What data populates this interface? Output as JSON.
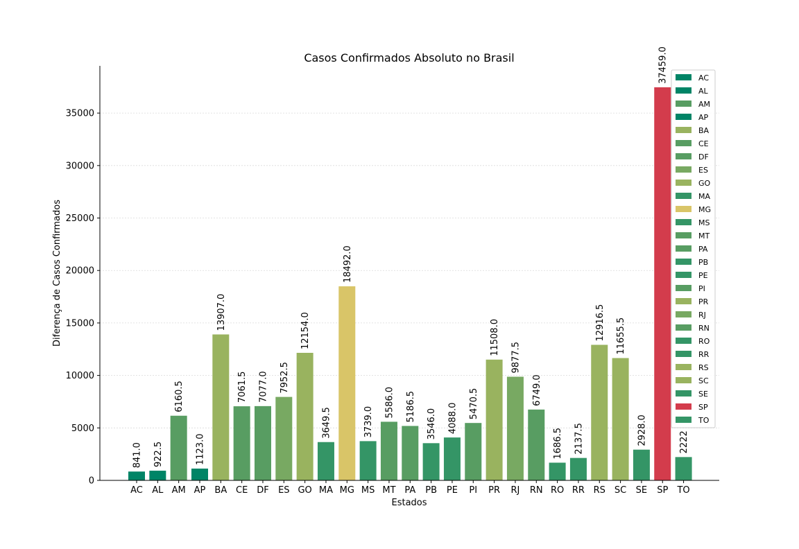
{
  "chart_data": {
    "type": "bar",
    "title": "Casos Confirmados Absoluto no Brasil",
    "xlabel": "Estados",
    "ylabel": "Diferença de Casos Confirmados",
    "ylim": [
      0,
      39500
    ],
    "yticks": [
      0,
      5000,
      10000,
      15000,
      20000,
      25000,
      30000,
      35000
    ],
    "grid": true,
    "legend_position": "top-right",
    "categories": [
      "AC",
      "AL",
      "AM",
      "AP",
      "BA",
      "CE",
      "DF",
      "ES",
      "GO",
      "MA",
      "MG",
      "MS",
      "MT",
      "PA",
      "PB",
      "PE",
      "PI",
      "PR",
      "RJ",
      "RN",
      "RO",
      "RR",
      "RS",
      "SC",
      "SE",
      "SP",
      "TO"
    ],
    "values": [
      841.0,
      922.5,
      6160.5,
      1123.0,
      13907.0,
      7061.5,
      7077.0,
      7952.5,
      12154.0,
      3649.5,
      18492.0,
      3739.0,
      5586.0,
      5186.5,
      3546.0,
      4088.0,
      5470.5,
      11508.0,
      9877.5,
      6749.0,
      1686.5,
      2137.5,
      12916.5,
      11655.5,
      2928.0,
      37459.0,
      2222.0
    ],
    "labels": [
      "841.0",
      "922.5",
      "6160.5",
      "1123.0",
      "13907.0",
      "7061.5",
      "7077.0",
      "7952.5",
      "12154.0",
      "3649.5",
      "18492.0",
      "3739.0",
      "5586.0",
      "5186.5",
      "3546.0",
      "4088.0",
      "5470.5",
      "11508.0",
      "9877.5",
      "6749.0",
      "1686.5",
      "2137.5",
      "12916.5",
      "11655.5",
      "2928.0",
      "37459.0",
      "2222"
    ],
    "colors": [
      "#008466",
      "#008466",
      "#589d62",
      "#008466",
      "#99b35f",
      "#589d62",
      "#589d62",
      "#78a962",
      "#99b35f",
      "#349566",
      "#d9c568",
      "#349566",
      "#589d62",
      "#589d62",
      "#349566",
      "#349566",
      "#589d62",
      "#99b35f",
      "#78a962",
      "#589d62",
      "#349566",
      "#349566",
      "#99b35f",
      "#99b35f",
      "#349566",
      "#d33c4c",
      "#349566"
    ],
    "legend_colors": [
      "#008466",
      "#008466",
      "#589d62",
      "#008466",
      "#99b35f",
      "#589d62",
      "#589d62",
      "#78a962",
      "#99b35f",
      "#349566",
      "#d9c568",
      "#349566",
      "#589d62",
      "#589d62",
      "#349566",
      "#349566",
      "#589d62",
      "#99b35f",
      "#78a962",
      "#589d62",
      "#349566",
      "#349566",
      "#99b35f",
      "#99b35f",
      "#349566",
      "#d33c4c",
      "#349566"
    ]
  }
}
